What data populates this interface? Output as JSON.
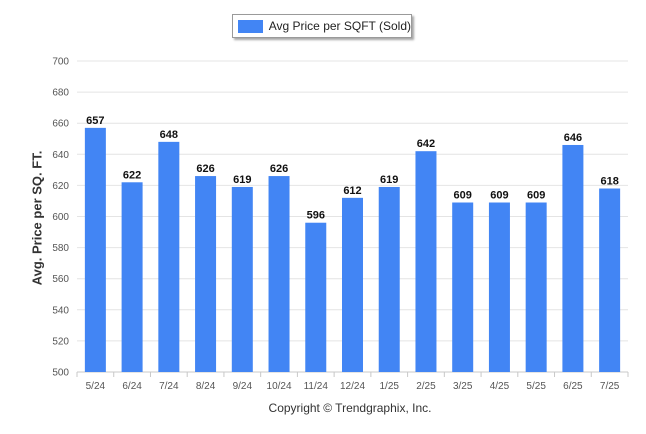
{
  "legend": {
    "label": "Avg Price per SQFT (Sold)"
  },
  "footer": {
    "copyright": "Copyright © Trendgraphix, Inc."
  },
  "colors": {
    "bar": "#4285f4",
    "grid": "#e4e4e4",
    "axis": "#c8c8c8"
  },
  "chart_data": {
    "type": "bar",
    "title": "",
    "xlabel": "",
    "ylabel": "Avg. Price per SQ. FT.",
    "categories": [
      "5/24",
      "6/24",
      "7/24",
      "8/24",
      "9/24",
      "10/24",
      "11/24",
      "12/24",
      "1/25",
      "2/25",
      "3/25",
      "4/25",
      "5/25",
      "6/25",
      "7/25"
    ],
    "series": [
      {
        "name": "Avg Price per SQFT (Sold)",
        "values": [
          657,
          622,
          648,
          626,
          619,
          626,
          596,
          612,
          619,
          642,
          609,
          609,
          609,
          646,
          618
        ]
      }
    ],
    "ylim": [
      500,
      700
    ],
    "yticks": [
      500,
      520,
      540,
      560,
      580,
      600,
      620,
      640,
      660,
      680,
      700
    ],
    "grid": true,
    "legend_position": "top-center",
    "data_labels": true
  }
}
